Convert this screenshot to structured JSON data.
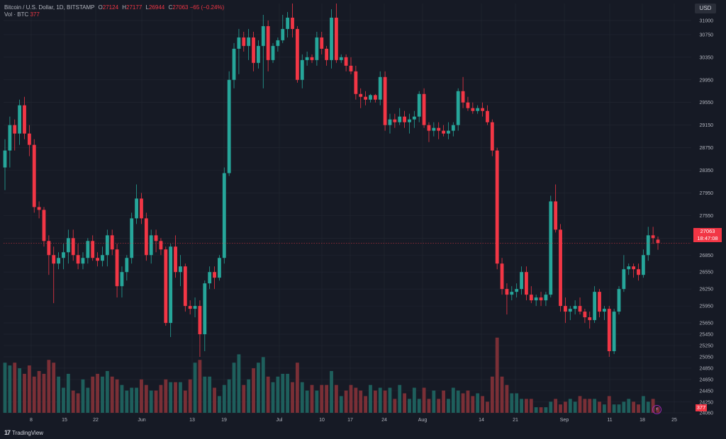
{
  "legend": {
    "symbol": "Bitcoin / U.S. Dollar, 1D, BITSTAMP",
    "open_key": "O",
    "open": "27124",
    "high_key": "H",
    "high": "27177",
    "low_key": "L",
    "low": "26944",
    "close_key": "C",
    "close": "27063",
    "change": "−65 (−0.24%)",
    "vol_label": "Vol · BTC",
    "vol_value": "377"
  },
  "currency": "USD",
  "price_tag": {
    "price": "27063",
    "countdown": "18:47:08"
  },
  "vol_tag": "377",
  "brand": "TradingView",
  "brand_mark": "17",
  "flash_icon": "⚡",
  "colors": {
    "up": "#26a69a",
    "down": "#f23645",
    "up_vol": "#1e5f5c",
    "down_vol": "#7a2f36",
    "background": "#161a25"
  },
  "chart_data": {
    "type": "candlestick",
    "title": "Bitcoin / U.S. Dollar, 1D, BITSTAMP",
    "x_tick_labels": [
      "8",
      "15",
      "22",
      "Jun",
      "13",
      "19",
      "Jul",
      "10",
      "17",
      "24",
      "Aug",
      "14",
      "21",
      "Sep",
      "11",
      "18",
      "25"
    ],
    "y_tick_labels": [
      31000,
      30750,
      30350,
      29950,
      29550,
      29150,
      28750,
      28350,
      27950,
      27550,
      27150,
      26850,
      26550,
      26250,
      25950,
      25650,
      25450,
      25250,
      25050,
      24850,
      24650,
      24450,
      24250,
      24060
    ],
    "ylim": [
      24060,
      31300
    ],
    "grid": true,
    "current_price": 27063,
    "candles": [
      [
        28400,
        28900,
        28000,
        28700
      ],
      [
        28700,
        29300,
        28400,
        29150
      ],
      [
        29150,
        29250,
        28700,
        29000
      ],
      [
        29000,
        29600,
        28800,
        29500
      ],
      [
        29500,
        29650,
        28900,
        29000
      ],
      [
        29000,
        29150,
        28600,
        28800
      ],
      [
        28800,
        28900,
        27600,
        27700
      ],
      [
        27700,
        27800,
        27500,
        27650
      ],
      [
        27650,
        27700,
        27000,
        27100
      ],
      [
        27100,
        27200,
        26500,
        26850
      ],
      [
        26850,
        27000,
        26000,
        26700
      ],
      [
        26700,
        26900,
        26600,
        26800
      ],
      [
        26800,
        27050,
        26600,
        26900
      ],
      [
        26900,
        27300,
        26700,
        27150
      ],
      [
        27150,
        27300,
        26750,
        26850
      ],
      [
        26850,
        27050,
        26600,
        26700
      ],
      [
        26700,
        26900,
        26600,
        26800
      ],
      [
        26800,
        27150,
        26700,
        27100
      ],
      [
        27100,
        27200,
        26750,
        26800
      ],
      [
        26800,
        26900,
        26650,
        26750
      ],
      [
        26750,
        27000,
        26650,
        26850
      ],
      [
        26850,
        27300,
        26650,
        27200
      ],
      [
        27200,
        27300,
        26850,
        26950
      ],
      [
        26950,
        27050,
        26100,
        26300
      ],
      [
        26300,
        26650,
        26100,
        26550
      ],
      [
        26550,
        26850,
        26400,
        26800
      ],
      [
        26800,
        27600,
        26700,
        27500
      ],
      [
        27500,
        28100,
        27400,
        27850
      ],
      [
        27850,
        27950,
        27400,
        27500
      ],
      [
        27500,
        27600,
        26750,
        26850
      ],
      [
        26850,
        27300,
        26700,
        27200
      ],
      [
        27200,
        27300,
        26900,
        27100
      ],
      [
        27100,
        27150,
        26850,
        26950
      ],
      [
        26950,
        27000,
        25600,
        25650
      ],
      [
        25650,
        27050,
        25400,
        27000
      ],
      [
        27000,
        27200,
        26450,
        26550
      ],
      [
        26550,
        26850,
        26300,
        26650
      ],
      [
        26650,
        26700,
        25850,
        25950
      ],
      [
        25950,
        26050,
        25800,
        25900
      ],
      [
        25900,
        26100,
        25750,
        25950
      ],
      [
        25950,
        26050,
        25050,
        25450
      ],
      [
        25450,
        26400,
        25150,
        26350
      ],
      [
        26350,
        26650,
        26250,
        26550
      ],
      [
        26550,
        26650,
        26250,
        26450
      ],
      [
        26450,
        26850,
        26400,
        26800
      ],
      [
        26800,
        28400,
        26700,
        28300
      ],
      [
        28300,
        30100,
        28250,
        29950
      ],
      [
        29950,
        30600,
        29800,
        30500
      ],
      [
        30500,
        30850,
        30050,
        30700
      ],
      [
        30700,
        30800,
        30450,
        30550
      ],
      [
        30550,
        30850,
        30300,
        30700
      ],
      [
        30700,
        30800,
        30100,
        30250
      ],
      [
        30250,
        30650,
        30150,
        30550
      ],
      [
        30550,
        31100,
        29800,
        30900
      ],
      [
        30900,
        31000,
        30100,
        30300
      ],
      [
        30300,
        30600,
        30250,
        30550
      ],
      [
        30550,
        30700,
        30450,
        30650
      ],
      [
        30650,
        31100,
        30600,
        30850
      ],
      [
        30850,
        31150,
        30700,
        31050
      ],
      [
        31050,
        31300,
        30700,
        30850
      ],
      [
        30850,
        30900,
        29900,
        29950
      ],
      [
        29950,
        30400,
        29800,
        30300
      ],
      [
        30300,
        30450,
        30200,
        30350
      ],
      [
        30350,
        30400,
        30250,
        30300
      ],
      [
        30300,
        30800,
        30200,
        30700
      ],
      [
        30700,
        30800,
        30400,
        30500
      ],
      [
        30500,
        30550,
        30200,
        30300
      ],
      [
        30300,
        31200,
        30150,
        31050
      ],
      [
        31050,
        31300,
        30250,
        30300
      ],
      [
        30300,
        30400,
        30250,
        30350
      ],
      [
        30350,
        30400,
        30100,
        30200
      ],
      [
        30200,
        30350,
        30050,
        30100
      ],
      [
        30100,
        30200,
        29600,
        29700
      ],
      [
        29700,
        29800,
        29450,
        29650
      ],
      [
        29650,
        29750,
        29500,
        29600
      ],
      [
        29600,
        29700,
        29550,
        29680
      ],
      [
        29680,
        29700,
        29550,
        29600
      ],
      [
        29600,
        30100,
        29500,
        30000
      ],
      [
        30000,
        30100,
        29050,
        29150
      ],
      [
        29150,
        29350,
        29000,
        29250
      ],
      [
        29250,
        29350,
        29100,
        29200
      ],
      [
        29200,
        29450,
        29150,
        29300
      ],
      [
        29300,
        29400,
        29100,
        29200
      ],
      [
        29200,
        29350,
        29000,
        29250
      ],
      [
        29250,
        29400,
        29100,
        29300
      ],
      [
        29300,
        29750,
        29200,
        29700
      ],
      [
        29700,
        29800,
        29100,
        29150
      ],
      [
        29150,
        29200,
        28850,
        29050
      ],
      [
        29050,
        29200,
        28950,
        29100
      ],
      [
        29100,
        29200,
        28900,
        29050
      ],
      [
        29050,
        29150,
        28950,
        29000
      ],
      [
        29000,
        29200,
        28900,
        29050
      ],
      [
        29050,
        29200,
        28950,
        29150
      ],
      [
        29150,
        29800,
        29050,
        29750
      ],
      [
        29750,
        30000,
        29450,
        29550
      ],
      [
        29550,
        29650,
        29400,
        29450
      ],
      [
        29450,
        29550,
        29350,
        29400
      ],
      [
        29400,
        29500,
        29350,
        29450
      ],
      [
        29450,
        29550,
        29300,
        29400
      ],
      [
        29400,
        29500,
        29150,
        29200
      ],
      [
        29200,
        29250,
        28600,
        28700
      ],
      [
        28700,
        28750,
        26600,
        26700
      ],
      [
        26700,
        26800,
        26150,
        26250
      ],
      [
        26250,
        26350,
        25800,
        26150
      ],
      [
        26150,
        26300,
        26050,
        26200
      ],
      [
        26200,
        26350,
        26100,
        26250
      ],
      [
        26250,
        26650,
        26150,
        26550
      ],
      [
        26550,
        26650,
        26050,
        26150
      ],
      [
        26150,
        26300,
        26000,
        26050
      ],
      [
        26050,
        26150,
        25950,
        26100
      ],
      [
        26100,
        26200,
        25950,
        26050
      ],
      [
        26050,
        26200,
        25950,
        26150
      ],
      [
        26150,
        27900,
        26100,
        27800
      ],
      [
        27800,
        28100,
        27250,
        27300
      ],
      [
        27300,
        27400,
        25850,
        25950
      ],
      [
        25950,
        26100,
        25650,
        25850
      ],
      [
        25850,
        25950,
        25700,
        25900
      ],
      [
        25900,
        26050,
        25800,
        25950
      ],
      [
        25950,
        26100,
        25800,
        25850
      ],
      [
        25850,
        25900,
        25650,
        25750
      ],
      [
        25750,
        25850,
        25550,
        25700
      ],
      [
        25700,
        26300,
        25650,
        26200
      ],
      [
        26200,
        26250,
        25750,
        25850
      ],
      [
        25850,
        25950,
        25700,
        25900
      ],
      [
        25900,
        25950,
        25050,
        25150
      ],
      [
        25150,
        25900,
        25100,
        25850
      ],
      [
        25850,
        26300,
        25800,
        26250
      ],
      [
        26250,
        26850,
        26200,
        26600
      ],
      [
        26600,
        26700,
        26500,
        26650
      ],
      [
        26650,
        26700,
        26450,
        26600
      ],
      [
        26600,
        26700,
        26400,
        26500
      ],
      [
        26500,
        26950,
        26450,
        26850
      ],
      [
        26850,
        27350,
        26750,
        27200
      ],
      [
        27200,
        27350,
        27050,
        27150
      ],
      [
        27124,
        27177,
        26944,
        27063
      ]
    ],
    "volumes": [
      18,
      17,
      18,
      16,
      14,
      17,
      13,
      15,
      14,
      19,
      18,
      13,
      9,
      14,
      8,
      7,
      12,
      9,
      13,
      14,
      13,
      15,
      13,
      12,
      10,
      8,
      9,
      9,
      12,
      10,
      8,
      8,
      10,
      12,
      11,
      11,
      11,
      8,
      12,
      18,
      19,
      13,
      13,
      9,
      6,
      10,
      12,
      18,
      21,
      10,
      12,
      16,
      18,
      20,
      13,
      11,
      13,
      14,
      14,
      11,
      18,
      11,
      8,
      10,
      8,
      10,
      10,
      15,
      10,
      6,
      8,
      10,
      9,
      8,
      6,
      10,
      8,
      9,
      8,
      9,
      5,
      10,
      7,
      5,
      9,
      5,
      9,
      5,
      8,
      5,
      8,
      5,
      9,
      8,
      7,
      8,
      6,
      7,
      6,
      4,
      13,
      27,
      13,
      10,
      7,
      7,
      5,
      5,
      5,
      2,
      2,
      2,
      4,
      5,
      3,
      4,
      5,
      4,
      6,
      5,
      5,
      5,
      4,
      3,
      6,
      3,
      3,
      4,
      5,
      4,
      3,
      6,
      4,
      5,
      2
    ],
    "volume_ylim": [
      0,
      30
    ]
  }
}
